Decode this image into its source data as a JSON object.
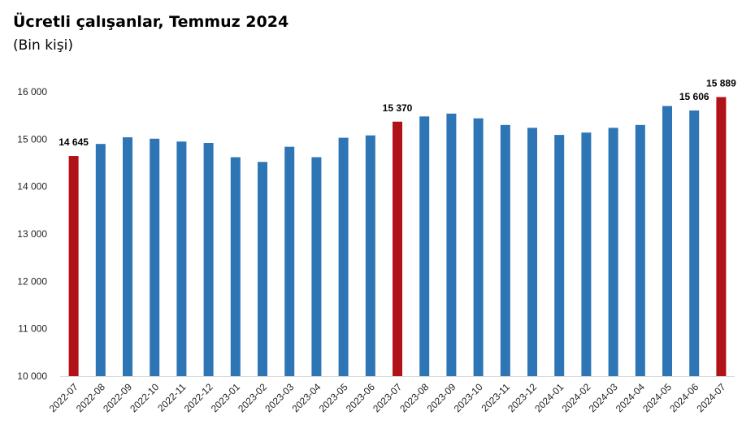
{
  "chart_data": {
    "type": "bar",
    "title": "Ücretli çalışanlar, Temmuz 2024",
    "subtitle": "(Bin kişi)",
    "xlabel": "",
    "ylabel": "",
    "ylim": [
      10000,
      16000
    ],
    "yticks": [
      10000,
      11000,
      12000,
      13000,
      14000,
      15000,
      16000
    ],
    "ytick_labels": [
      "10 000",
      "11 000",
      "12 000",
      "13 000",
      "14 000",
      "15 000",
      "16 000"
    ],
    "grid": false,
    "legend": "none",
    "categories": [
      "2022-07",
      "2022-08",
      "2022-09",
      "2022-10",
      "2022-11",
      "2022-12",
      "2023-01",
      "2023-02",
      "2023-03",
      "2023-04",
      "2023-05",
      "2023-06",
      "2023-07",
      "2023-08",
      "2023-09",
      "2023-10",
      "2023-11",
      "2023-12",
      "2024-01",
      "2024-02",
      "2024-03",
      "2024-04",
      "2024-05",
      "2024-06",
      "2024-07"
    ],
    "values": [
      14645,
      14900,
      15040,
      15010,
      14950,
      14920,
      14620,
      14520,
      14840,
      14620,
      15030,
      15080,
      15370,
      15480,
      15540,
      15440,
      15300,
      15240,
      15090,
      15140,
      15240,
      15300,
      15700,
      15606,
      15889
    ],
    "highlighted": [
      "2022-07",
      "2023-07",
      "2024-07"
    ],
    "data_labels": [
      {
        "category": "2022-07",
        "text": "14 645"
      },
      {
        "category": "2023-07",
        "text": "15 370"
      },
      {
        "category": "2024-06",
        "text": "15 606"
      },
      {
        "category": "2024-07",
        "text": "15 889"
      }
    ],
    "colors": {
      "bar": "#2e75b6",
      "highlight": "#b01217",
      "axis": "#d9d9d9"
    }
  }
}
